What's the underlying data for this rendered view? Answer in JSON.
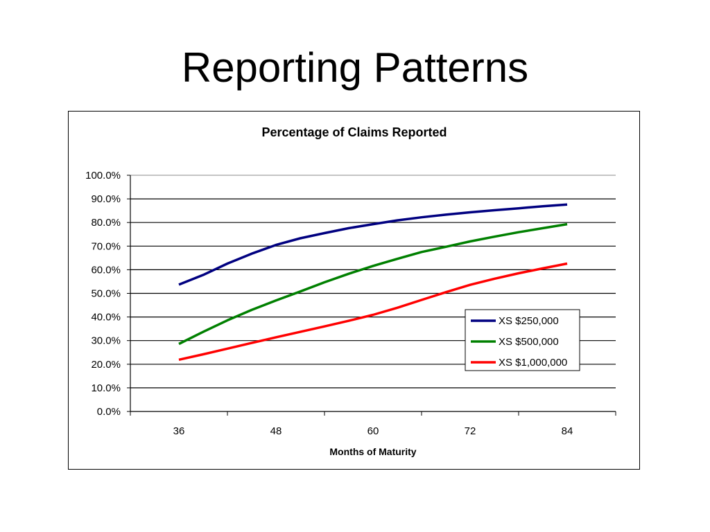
{
  "slide": {
    "title": "Reporting Patterns"
  },
  "chart_data": {
    "type": "line",
    "title": "Percentage of Claims Reported",
    "xlabel": "Months of Maturity",
    "ylabel": "",
    "x_ticks": [
      36,
      48,
      60,
      72,
      84
    ],
    "x_ticks_labels": [
      "36",
      "48",
      "60",
      "72",
      "84"
    ],
    "xlim": [
      30,
      90
    ],
    "ylim": [
      0,
      100
    ],
    "y_ticks": [
      0,
      10,
      20,
      30,
      40,
      50,
      60,
      70,
      80,
      90,
      100
    ],
    "y_tick_labels": [
      "0.0%",
      "10.0%",
      "20.0%",
      "30.0%",
      "40.0%",
      "50.0%",
      "60.0%",
      "70.0%",
      "80.0%",
      "90.0%",
      "100.0%"
    ],
    "grid": true,
    "legend_position": "bottom-right",
    "x": [
      36,
      39,
      42,
      45,
      48,
      51,
      54,
      57,
      60,
      63,
      66,
      69,
      72,
      75,
      78,
      81,
      84
    ],
    "series": [
      {
        "name": "XS $250,000",
        "color": "#000080",
        "values": [
          53.7,
          57.8,
          62.6,
          66.8,
          70.5,
          73.3,
          75.5,
          77.6,
          79.3,
          80.9,
          82.2,
          83.3,
          84.3,
          85.2,
          86.0,
          86.9,
          87.6
        ]
      },
      {
        "name": "XS $500,000",
        "color": "#008000",
        "values": [
          28.6,
          33.7,
          38.6,
          43.0,
          47.0,
          50.8,
          54.7,
          58.3,
          61.6,
          64.6,
          67.5,
          69.7,
          72.0,
          74.0,
          75.9,
          77.6,
          79.3
        ]
      },
      {
        "name": "XS $1,000,000",
        "color": "#FF0000",
        "values": [
          21.9,
          24.2,
          26.6,
          29.0,
          31.4,
          33.7,
          36.0,
          38.4,
          40.9,
          43.9,
          47.2,
          50.5,
          53.6,
          56.2,
          58.5,
          60.6,
          62.6
        ]
      }
    ]
  }
}
